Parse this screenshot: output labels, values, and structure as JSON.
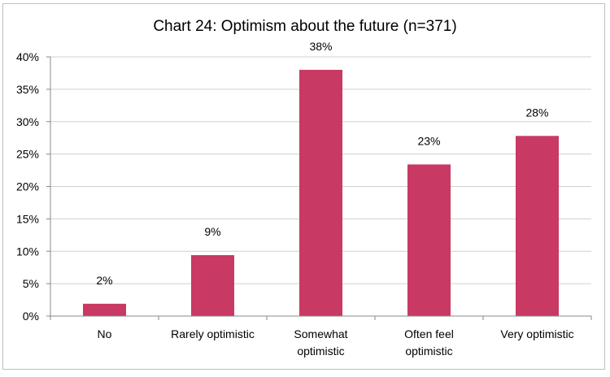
{
  "chart_data": {
    "type": "bar",
    "title": "Chart 24: Optimism about the future (n=371)",
    "categories": [
      [
        "No"
      ],
      [
        "Rarely optimistic"
      ],
      [
        "Somewhat",
        "optimistic"
      ],
      [
        "Often feel",
        "optimistic"
      ],
      [
        "Very optimistic"
      ]
    ],
    "values": [
      1.9,
      9.4,
      38.0,
      23.4,
      27.8
    ],
    "data_labels": [
      "2%",
      "9%",
      "38%",
      "23%",
      "28%"
    ],
    "y_ticks": [
      "0%",
      "5%",
      "10%",
      "15%",
      "20%",
      "25%",
      "30%",
      "35%",
      "40%"
    ],
    "ylim": [
      0,
      40
    ],
    "ytick_step": 5,
    "grid": true,
    "legend": "none",
    "bar_color": "#c83964",
    "grid_color": "#d0d0d0",
    "axis_color": "#888888"
  }
}
